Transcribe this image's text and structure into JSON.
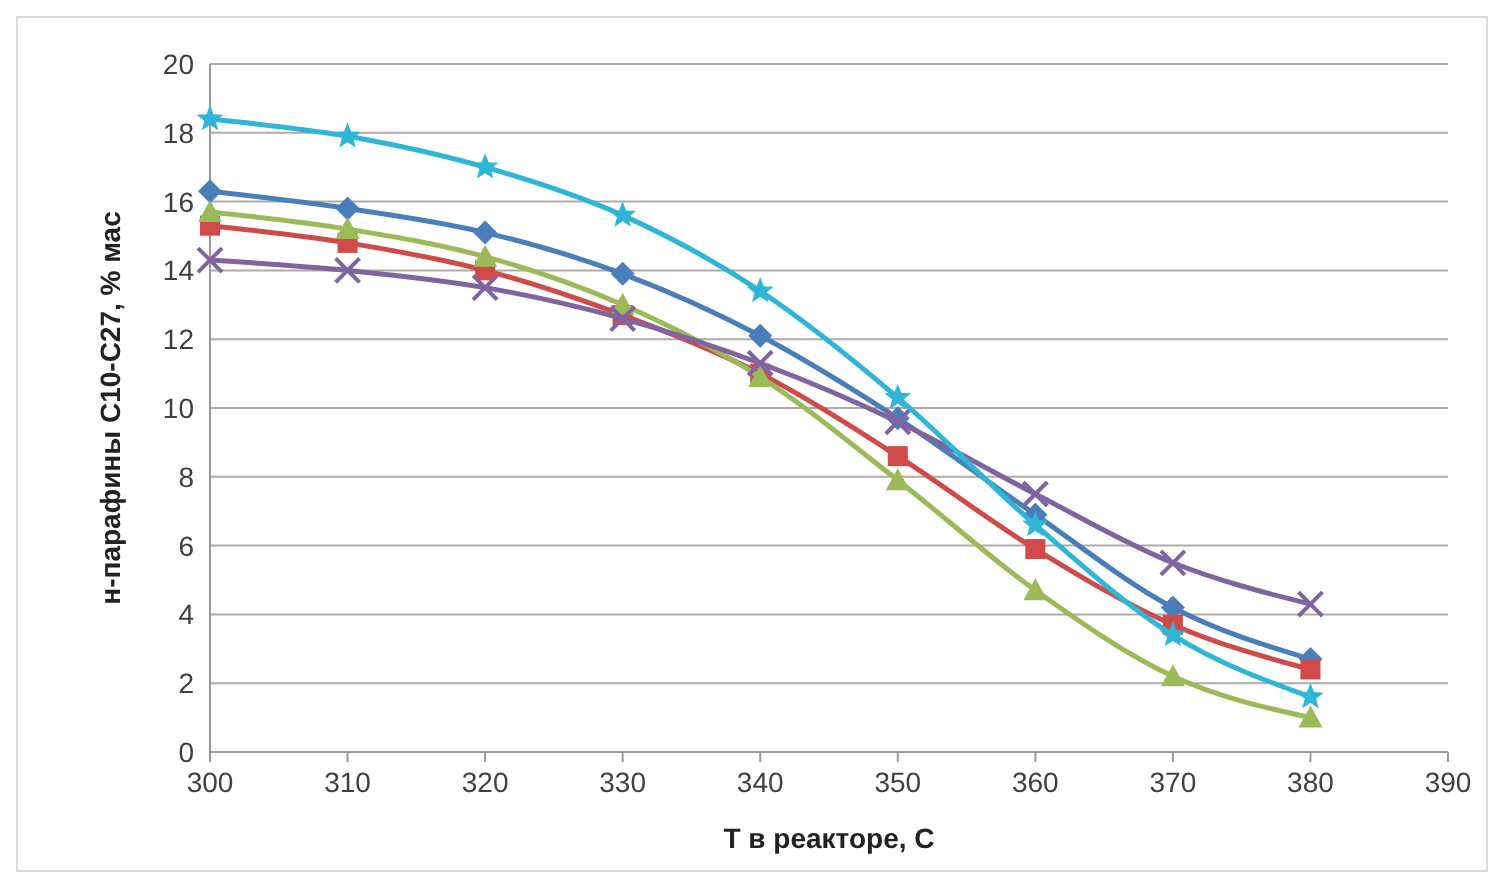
{
  "chart_data": {
    "type": "line",
    "xlabel": "T в реакторе, C",
    "ylabel": "н-парафины С10-С27, % мас",
    "x": [
      300,
      310,
      320,
      330,
      340,
      350,
      360,
      370,
      380
    ],
    "xlim": [
      300,
      390
    ],
    "xticks": [
      300,
      310,
      320,
      330,
      340,
      350,
      360,
      370,
      380,
      390
    ],
    "ylim": [
      0,
      20
    ],
    "yticks": [
      0,
      2,
      4,
      6,
      8,
      10,
      12,
      14,
      16,
      18,
      20
    ],
    "grid": "y",
    "line_style": "solid",
    "series": [
      {
        "color": "#4a7ebb",
        "marker": "diamond",
        "values": [
          16.3,
          15.8,
          15.1,
          13.9,
          12.1,
          9.7,
          6.9,
          4.2,
          2.7
        ]
      },
      {
        "color": "#d04a4a",
        "marker": "square",
        "values": [
          15.3,
          14.8,
          14.0,
          12.7,
          11.0,
          8.6,
          5.9,
          3.7,
          2.4
        ]
      },
      {
        "color": "#9bbb59",
        "marker": "triangle",
        "values": [
          15.7,
          15.2,
          14.4,
          13.0,
          10.9,
          7.9,
          4.7,
          2.2,
          1.0
        ]
      },
      {
        "color": "#8064a2",
        "marker": "cross",
        "values": [
          14.3,
          14.0,
          13.5,
          12.6,
          11.3,
          9.6,
          7.5,
          5.5,
          4.3
        ]
      },
      {
        "color": "#2fb5d5",
        "marker": "star",
        "values": [
          18.4,
          17.9,
          17.0,
          15.6,
          13.4,
          10.3,
          6.6,
          3.4,
          1.6
        ]
      }
    ]
  }
}
